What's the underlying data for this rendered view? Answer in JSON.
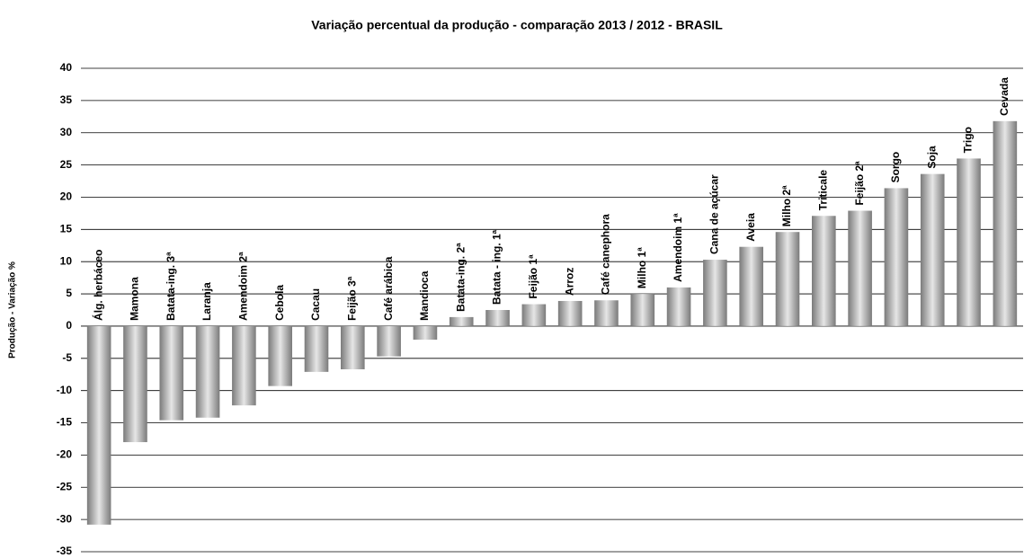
{
  "chart_data": {
    "type": "bar",
    "title": "Variação percentual  da produção - comparação  2013 / 2012 -  BRASIL",
    "y_label": "Produção - Variação %",
    "categories": [
      "Álg. herbáceo",
      "Mamona",
      "Batata-ing. 3ª",
      "Laranja",
      "Amendoim 2ª",
      "Cebola",
      "Cacau",
      "Feijão 3ª",
      "Café arábica",
      "Mandioca",
      "Batata-ing. 2ª",
      "Batata - ing. 1ª",
      "Feijão 1ª",
      "Arroz",
      "Café canephora",
      "Milho 1ª",
      "Amendoim 1ª",
      "Cana de açúcar",
      "Aveia",
      "Milho 2ª",
      "Triticale",
      "Feijão 2ª",
      "Sorgo",
      "Soja",
      "Trigo",
      "Cevada"
    ],
    "values": [
      -30.8,
      -18,
      -14.6,
      -14.2,
      -12.3,
      -9.3,
      -7.1,
      -6.7,
      -4.7,
      -2.1,
      1.4,
      2.5,
      3.4,
      3.9,
      4,
      5,
      6,
      10.3,
      12.3,
      14.6,
      17.1,
      17.9,
      21.4,
      23.6,
      26,
      31.8
    ],
    "color": "#7a7a7a",
    "ylim": [
      -35,
      40
    ],
    "yticks": [
      40,
      35,
      30,
      25,
      20,
      15,
      10,
      5,
      0,
      -5,
      -10,
      -15,
      -20,
      -25,
      -30,
      -35
    ],
    "grid": true
  }
}
